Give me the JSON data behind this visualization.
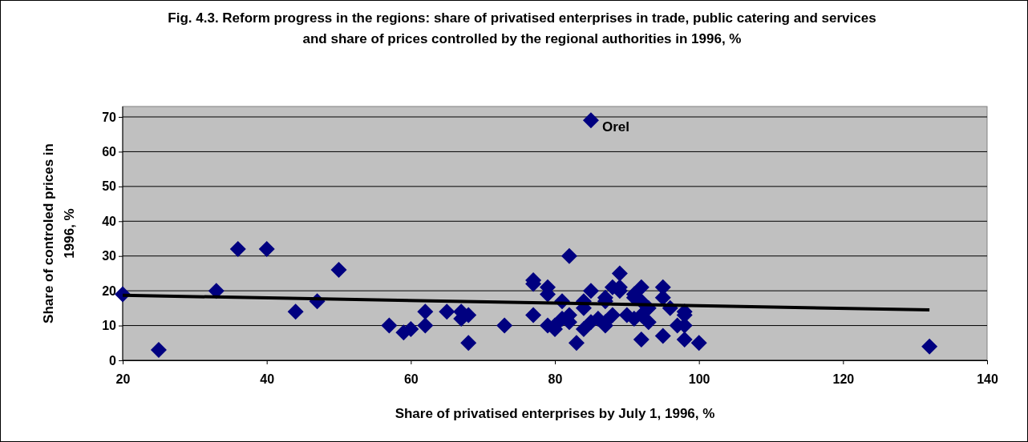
{
  "chart_data": {
    "type": "scatter",
    "title": "Fig. 4.3. Reform progress in the regions: share of privatised enterprises in trade, public catering and services and share of prices controlled by the regional authorities in 1996, %",
    "xlabel": "Share of privatised enterprises by July 1, 1996, %",
    "ylabel": "Share of controled prices in 1996, %",
    "xlim": [
      20,
      140
    ],
    "xticks": [
      20,
      40,
      60,
      80,
      100,
      120,
      140
    ],
    "ylim": [
      0,
      70
    ],
    "yticks": [
      0,
      10,
      20,
      30,
      40,
      50,
      60,
      70
    ],
    "grid": "y",
    "marker": "diamond",
    "annotations": [
      {
        "text": "Orel",
        "x": 85,
        "y": 69
      }
    ],
    "series": [
      {
        "color": "#000080",
        "x": [
          20,
          25,
          33,
          36,
          40,
          44,
          47,
          50,
          57,
          59,
          60,
          62,
          62,
          65,
          67,
          67,
          68,
          68,
          73,
          77,
          77,
          77,
          79,
          79,
          79,
          80,
          80,
          81,
          81,
          82,
          82,
          82,
          83,
          84,
          84,
          84,
          85,
          85,
          85,
          86,
          87,
          87,
          87,
          87,
          88,
          88,
          89,
          89,
          89,
          90,
          91,
          91,
          91,
          92,
          92,
          92,
          92,
          93,
          93,
          95,
          95,
          95,
          96,
          97,
          98,
          98,
          98,
          98,
          100,
          132
        ],
        "values": [
          19,
          3,
          20,
          32,
          32,
          14,
          17,
          26,
          10,
          8,
          9,
          14,
          10,
          14,
          14,
          12,
          13,
          5,
          10,
          23,
          22,
          13,
          21,
          19,
          10,
          10,
          9,
          17,
          12,
          30,
          13,
          11,
          5,
          17,
          15,
          9,
          20,
          69,
          11,
          12,
          18,
          17,
          11,
          10,
          21,
          13,
          25,
          20,
          21,
          13,
          19,
          18,
          12,
          21,
          17,
          13,
          6,
          15,
          11,
          21,
          18,
          7,
          15,
          10,
          14,
          13,
          10,
          6,
          5,
          4
        ]
      },
      {
        "type": "line",
        "color": "#000000",
        "marker": "none",
        "line_style": "solid",
        "x": [
          20,
          132
        ],
        "values": [
          18.7,
          14.5
        ]
      }
    ]
  }
}
